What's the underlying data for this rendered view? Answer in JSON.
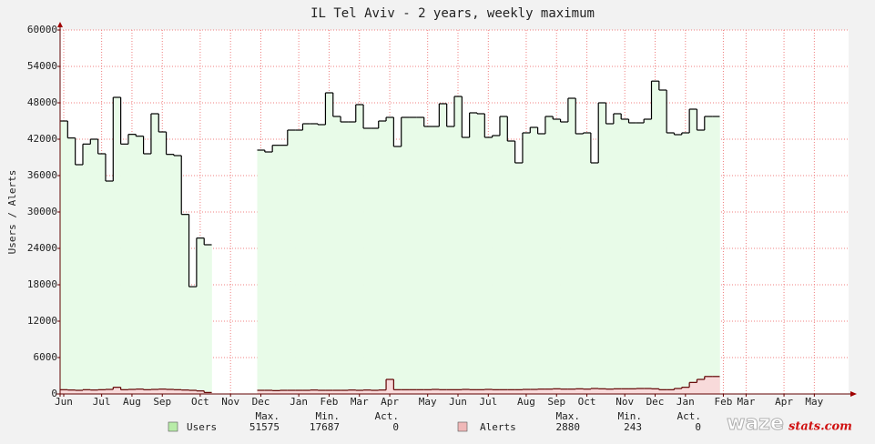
{
  "chart_data": {
    "type": "step-area",
    "title": "IL Tel Aviv - 2 years, weekly maximum",
    "y_label": "Users / Alerts",
    "categories": [
      "Jun",
      null,
      null,
      null,
      null,
      "Jul",
      null,
      null,
      null,
      "Aug",
      null,
      null,
      null,
      "Sep",
      null,
      null,
      null,
      null,
      "Oct",
      null,
      null,
      null,
      "Nov",
      null,
      null,
      null,
      "Dec",
      null,
      null,
      null,
      null,
      "Jan",
      null,
      null,
      null,
      "Feb",
      null,
      null,
      null,
      "Mar",
      null,
      null,
      null,
      "Apr",
      null,
      null,
      null,
      null,
      "May",
      null,
      null,
      null,
      "Jun",
      null,
      null,
      null,
      "Jul",
      null,
      null,
      null,
      null,
      "Aug",
      null,
      null,
      null,
      "Sep",
      null,
      null,
      null,
      "Oct",
      null,
      null,
      null,
      null,
      "Nov",
      null,
      null,
      null,
      "Dec",
      null,
      null,
      null,
      "Jan",
      null,
      null,
      null,
      null,
      "Feb",
      null,
      null,
      "Mar",
      null,
      null,
      null,
      null,
      "Apr",
      null,
      null,
      null,
      "May",
      null,
      null,
      null,
      null
    ],
    "series": [
      {
        "name": "Users",
        "color": "#000000",
        "fill": "#e8fbe8",
        "swatch": "#b8eca8",
        "max": 51575,
        "min": 17687,
        "act": 0,
        "values": [
          45000,
          42200,
          37800,
          41200,
          42000,
          39600,
          35100,
          48900,
          41200,
          42800,
          42500,
          39600,
          46200,
          43200,
          39500,
          39300,
          29600,
          17687,
          25700,
          24600,
          null,
          null,
          null,
          null,
          null,
          null,
          40200,
          39900,
          41000,
          41000,
          43500,
          43500,
          44550,
          44550,
          44400,
          49650,
          45750,
          44850,
          44850,
          47700,
          43800,
          43800,
          45000,
          45600,
          40800,
          45600,
          45600,
          45600,
          44100,
          44100,
          47850,
          44100,
          49050,
          42300,
          46350,
          46200,
          42300,
          42600,
          45750,
          41700,
          38100,
          43050,
          43950,
          42900,
          45750,
          45300,
          44850,
          48750,
          42900,
          43050,
          38100,
          48000,
          44550,
          46200,
          45300,
          44700,
          44700,
          45300,
          51575,
          50100,
          43050,
          42750,
          43050,
          46950,
          43500,
          45750,
          45750,
          null,
          null,
          null,
          null,
          null,
          null,
          null,
          null,
          null,
          null,
          null,
          null,
          null,
          null,
          null,
          null,
          null
        ]
      },
      {
        "name": "Alerts",
        "color": "#600000",
        "fill": "#f8dada",
        "swatch": "#f0b8b8",
        "max": 2880,
        "min": 243,
        "act": 0,
        "values": [
          700,
          650,
          600,
          700,
          650,
          700,
          750,
          1100,
          700,
          750,
          800,
          700,
          750,
          800,
          750,
          700,
          650,
          600,
          500,
          243,
          null,
          null,
          null,
          null,
          null,
          null,
          600,
          600,
          550,
          600,
          600,
          600,
          600,
          650,
          600,
          600,
          600,
          600,
          650,
          600,
          650,
          600,
          650,
          2400,
          700,
          700,
          700,
          700,
          700,
          750,
          700,
          700,
          700,
          750,
          700,
          700,
          750,
          700,
          700,
          700,
          700,
          750,
          750,
          800,
          800,
          850,
          800,
          800,
          850,
          800,
          900,
          850,
          800,
          850,
          850,
          850,
          900,
          900,
          850,
          700,
          700,
          900,
          1100,
          1900,
          2400,
          2880,
          2880,
          null,
          null,
          null,
          null,
          null,
          null,
          null,
          null,
          null,
          null,
          null,
          null,
          null,
          null,
          null,
          null,
          null
        ]
      }
    ],
    "stat_labels": [
      "Max.",
      "Min.",
      "Act."
    ],
    "ylim": [
      0,
      60000
    ],
    "yticks": [
      0,
      6000,
      12000,
      18000,
      24000,
      30000,
      36000,
      42000,
      48000,
      54000,
      60000
    ],
    "grid": true,
    "watermark": [
      "waze",
      "stats.com"
    ]
  }
}
